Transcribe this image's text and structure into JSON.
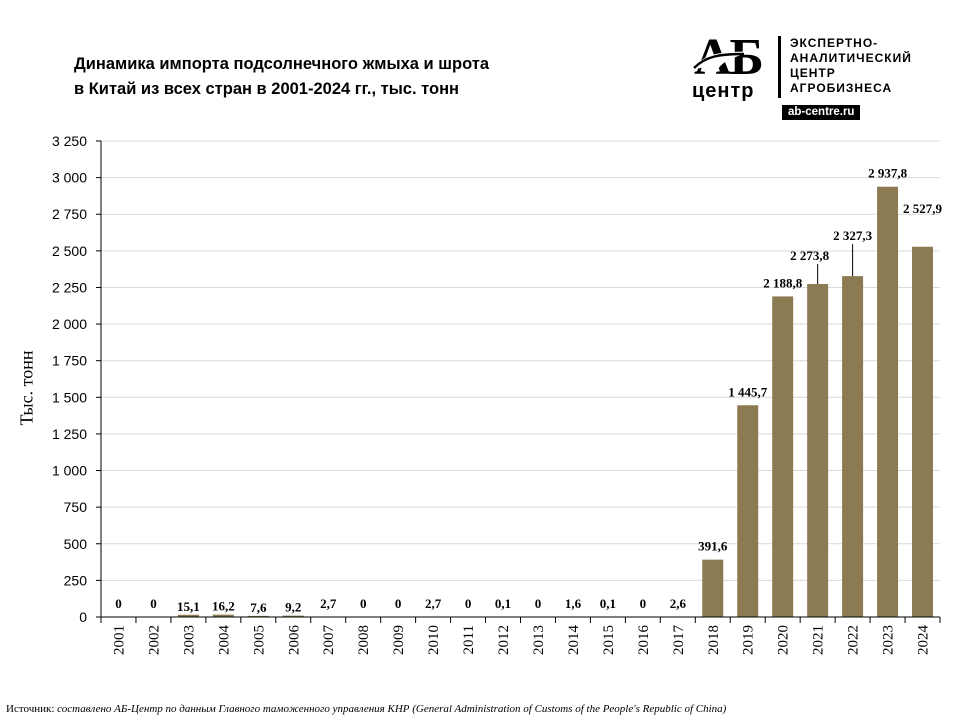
{
  "header": {
    "title_line1": "Динамика импорта подсолнечного  жмыха и шрота",
    "title_line2": "в Китай из всех стран в 2001-2024 гг., тыс. тонн"
  },
  "logo": {
    "mark_ab": "АБ",
    "mark_centr": "центр",
    "line1": "ЭКСПЕРТНО-",
    "line2": "АНАЛИТИЧЕСКИЙ",
    "line3": "ЦЕНТР",
    "line4": "АГРОБИЗНЕСА",
    "url": "ab-centre.ru"
  },
  "footer": {
    "source_label": "Источник:",
    "source_text": "составлено АБ-Центр по данным Главного таможенного управления КНР (General Administration of Customs of the People's Republic  of China)"
  },
  "colors": {
    "bar": "#8b7a52",
    "grid": "#d9d9d9",
    "axis": "#000000"
  },
  "chart_data": {
    "type": "bar",
    "title": "Динамика импорта подсолнечного  жмыха и шрота в Китай из всех стран в 2001-2024 гг., тыс. тонн",
    "xlabel": "",
    "ylabel": "Тыс. тонн",
    "ylim": [
      0,
      3250
    ],
    "grid": true,
    "categories": [
      "2001",
      "2002",
      "2003",
      "2004",
      "2005",
      "2006",
      "2007",
      "2008",
      "2009",
      "2010",
      "2011",
      "2012",
      "2013",
      "2014",
      "2015",
      "2016",
      "2017",
      "2018",
      "2019",
      "2020",
      "2021",
      "2022",
      "2023",
      "2024"
    ],
    "values": [
      0,
      0,
      15.1,
      16.2,
      7.6,
      9.2,
      2.7,
      0,
      0,
      2.7,
      0,
      0.1,
      0,
      1.6,
      0.1,
      0,
      2.6,
      391.6,
      1445.7,
      2188.8,
      2273.8,
      2327.3,
      2937.8,
      2527.9
    ],
    "data_labels": [
      "0",
      "0",
      "15,1",
      "16,2",
      "7,6",
      "9,2",
      "2,7",
      "0",
      "0",
      "2,7",
      "0",
      "0,1",
      "0",
      "1,6",
      "0,1",
      "0",
      "2,6",
      "391,6",
      "1 445,7",
      "2 188,8",
      "2 273,8",
      "2 327,3",
      "2 937,8",
      "2 527,9"
    ],
    "y_ticks": [
      0,
      250,
      500,
      750,
      1000,
      1250,
      1500,
      1750,
      2000,
      2250,
      2500,
      2750,
      3000,
      3250
    ],
    "y_tick_labels": [
      "0",
      "250",
      "500",
      "750",
      "1 000",
      "1 250",
      "1 500",
      "1 750",
      "2 000",
      "2 250",
      "2 500",
      "2 750",
      "3 000",
      "3 250"
    ]
  }
}
